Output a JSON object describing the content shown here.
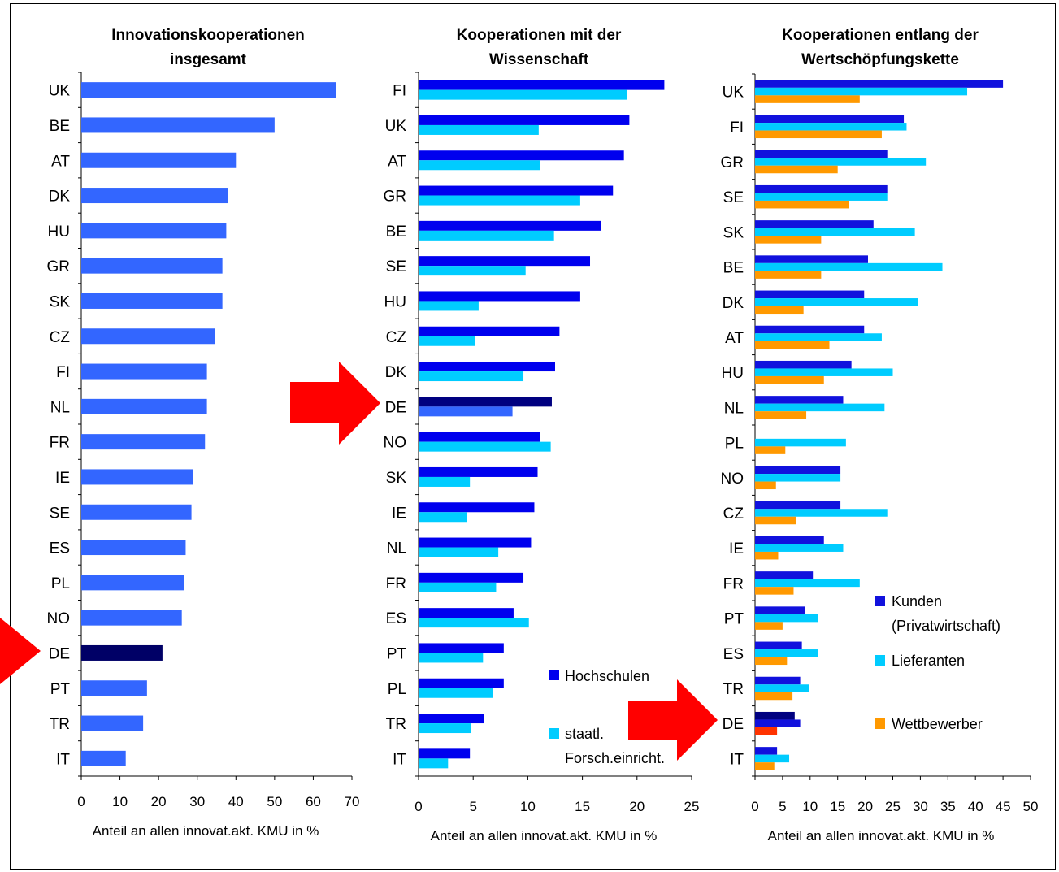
{
  "colors": {
    "bar_main": "#3366ff",
    "highlight_dark": "#000066",
    "highlight_dark2": "#000080",
    "hochschulen": "#0000ee",
    "staatl": "#00ccff",
    "de_staatl": "#3366ff",
    "kunden": "#1111dd",
    "lieferanten": "#00ccff",
    "wettbewerber": "#ff9900",
    "de_wettbewerber": "#ff3300",
    "arrow": "#ff0000"
  },
  "chart_data": [
    {
      "type": "bar",
      "orientation": "horizontal",
      "title_lines": [
        "Innovationskooperationen",
        "insgesamt"
      ],
      "xlabel": "Anteil an allen innovat.akt. KMU in %",
      "xlim": [
        0,
        70
      ],
      "xticks": [
        0,
        10,
        20,
        30,
        40,
        50,
        60,
        70
      ],
      "categories": [
        "UK",
        "BE",
        "AT",
        "DK",
        "HU",
        "GR",
        "SK",
        "CZ",
        "FI",
        "NL",
        "FR",
        "IE",
        "SE",
        "ES",
        "PL",
        "NO",
        "DE",
        "PT",
        "TR",
        "IT"
      ],
      "highlight": "DE",
      "series": [
        {
          "values": [
            66,
            50,
            40,
            38,
            37.5,
            36.5,
            36.5,
            34.5,
            32.5,
            32.5,
            32,
            29,
            28.5,
            27,
            26.5,
            26,
            21,
            17,
            16,
            11.5
          ]
        }
      ]
    },
    {
      "type": "bar",
      "orientation": "horizontal",
      "title_lines": [
        "Kooperationen mit der",
        "Wissenschaft"
      ],
      "xlabel": "Anteil an allen innovat.akt. KMU in %",
      "xlim": [
        0,
        25
      ],
      "xticks": [
        0,
        5,
        10,
        15,
        20,
        25
      ],
      "categories": [
        "FI",
        "UK",
        "AT",
        "GR",
        "BE",
        "SE",
        "HU",
        "CZ",
        "DK",
        "DE",
        "NO",
        "SK",
        "IE",
        "NL",
        "FR",
        "ES",
        "PT",
        "PL",
        "TR",
        "IT"
      ],
      "highlight": "DE",
      "series": [
        {
          "name": "Hochschulen",
          "values": [
            22.5,
            19.3,
            18.8,
            17.8,
            16.7,
            15.7,
            14.8,
            12.9,
            12.5,
            12.2,
            11.1,
            10.9,
            10.6,
            10.3,
            9.6,
            8.7,
            7.8,
            7.8,
            6.0,
            4.7
          ]
        },
        {
          "name": "staatl. Forsch.einricht.",
          "values": [
            19.1,
            11.0,
            11.1,
            14.8,
            12.4,
            9.8,
            5.5,
            5.2,
            9.6,
            8.6,
            12.1,
            4.7,
            4.4,
            7.3,
            7.1,
            10.1,
            5.9,
            6.8,
            4.8,
            2.7
          ]
        }
      ]
    },
    {
      "type": "bar",
      "orientation": "horizontal",
      "title_lines": [
        "Kooperationen entlang der",
        "Wertschöpfungskette"
      ],
      "xlabel": "Anteil an allen innovat.akt. KMU in %",
      "xlim": [
        0,
        50
      ],
      "xticks": [
        0,
        5,
        10,
        15,
        20,
        25,
        30,
        35,
        40,
        45,
        50
      ],
      "categories": [
        "UK",
        "FI",
        "GR",
        "SE",
        "SK",
        "BE",
        "DK",
        "AT",
        "HU",
        "NL",
        "PL",
        "NO",
        "CZ",
        "IE",
        "FR",
        "PT",
        "ES",
        "TR",
        "DE",
        "IT"
      ],
      "highlight": "DE",
      "series": [
        {
          "name": "Kunden (Privatwirtschaft)",
          "values": [
            45,
            27,
            24,
            24,
            21.5,
            20.5,
            19.8,
            19.8,
            17.5,
            16,
            0,
            15.5,
            15.5,
            12.5,
            10.5,
            9,
            8.5,
            8.2,
            7.2,
            4
          ]
        },
        {
          "name": "Lieferanten",
          "values": [
            38.5,
            27.5,
            31,
            24,
            29,
            34,
            29.5,
            23,
            25,
            23.5,
            16.5,
            15.5,
            24,
            16,
            19,
            11.5,
            11.5,
            9.8,
            8.2,
            6.2
          ]
        },
        {
          "name": "Wettbewerber",
          "values": [
            19,
            23,
            15,
            17,
            12,
            12,
            8.8,
            13.5,
            12.5,
            9.3,
            5.5,
            3.8,
            7.5,
            4.2,
            7,
            5,
            5.8,
            6.8,
            4,
            3.5
          ]
        }
      ]
    }
  ]
}
